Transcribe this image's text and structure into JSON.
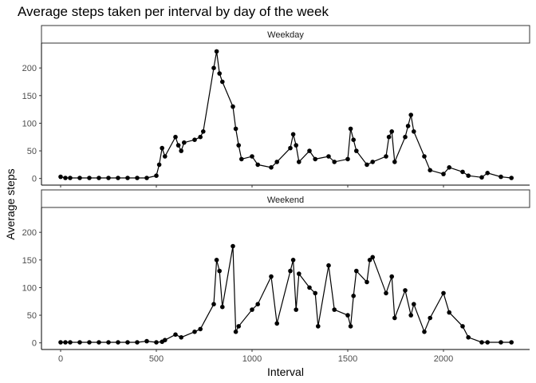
{
  "chart_data": {
    "type": "line",
    "title": "Average steps taken per interval by day of the week",
    "xlabel": "Interval",
    "ylabel": "Average steps",
    "xlim": [
      -100,
      2450
    ],
    "ylim": [
      -12,
      245
    ],
    "x_ticks": [
      0,
      500,
      1000,
      1500,
      2000
    ],
    "y_ticks": [
      0,
      50,
      100,
      150,
      200
    ],
    "grid": false,
    "markers": true,
    "panels": [
      {
        "label": "Weekday",
        "x": [
          0,
          25,
          50,
          100,
          150,
          200,
          250,
          300,
          350,
          400,
          450,
          500,
          515,
          530,
          545,
          600,
          615,
          630,
          645,
          700,
          730,
          745,
          800,
          815,
          830,
          845,
          900,
          915,
          930,
          945,
          1000,
          1030,
          1100,
          1130,
          1200,
          1215,
          1230,
          1245,
          1300,
          1330,
          1400,
          1430,
          1500,
          1515,
          1530,
          1545,
          1600,
          1630,
          1700,
          1715,
          1730,
          1745,
          1800,
          1815,
          1830,
          1845,
          1900,
          1930,
          2000,
          2030,
          2100,
          2130,
          2200,
          2230,
          2300,
          2355
        ],
        "y": [
          3,
          1,
          1,
          1,
          1,
          1,
          1,
          1,
          1,
          1,
          1,
          5,
          25,
          55,
          40,
          75,
          60,
          50,
          65,
          70,
          75,
          85,
          200,
          230,
          190,
          175,
          130,
          90,
          60,
          35,
          40,
          25,
          20,
          30,
          55,
          80,
          60,
          30,
          50,
          35,
          40,
          30,
          35,
          90,
          70,
          50,
          25,
          30,
          40,
          75,
          85,
          30,
          75,
          95,
          115,
          85,
          40,
          15,
          8,
          20,
          12,
          5,
          2,
          10,
          3,
          1
        ]
      },
      {
        "label": "Weekend",
        "x": [
          0,
          25,
          50,
          100,
          150,
          200,
          250,
          300,
          350,
          400,
          450,
          500,
          530,
          545,
          600,
          630,
          700,
          730,
          800,
          815,
          830,
          845,
          900,
          915,
          930,
          1000,
          1030,
          1100,
          1130,
          1200,
          1215,
          1230,
          1245,
          1300,
          1330,
          1345,
          1400,
          1430,
          1500,
          1515,
          1530,
          1545,
          1600,
          1615,
          1630,
          1700,
          1730,
          1745,
          1800,
          1830,
          1845,
          1900,
          1930,
          2000,
          2030,
          2100,
          2130,
          2200,
          2230,
          2300,
          2355
        ],
        "y": [
          1,
          1,
          1,
          1,
          1,
          1,
          1,
          1,
          1,
          1,
          3,
          1,
          2,
          5,
          15,
          10,
          20,
          25,
          70,
          150,
          130,
          65,
          175,
          20,
          30,
          60,
          70,
          120,
          35,
          130,
          150,
          60,
          125,
          100,
          90,
          30,
          140,
          60,
          50,
          30,
          85,
          130,
          110,
          150,
          155,
          90,
          120,
          45,
          95,
          50,
          70,
          20,
          45,
          90,
          55,
          30,
          10,
          1,
          1,
          1,
          1
        ]
      }
    ]
  }
}
